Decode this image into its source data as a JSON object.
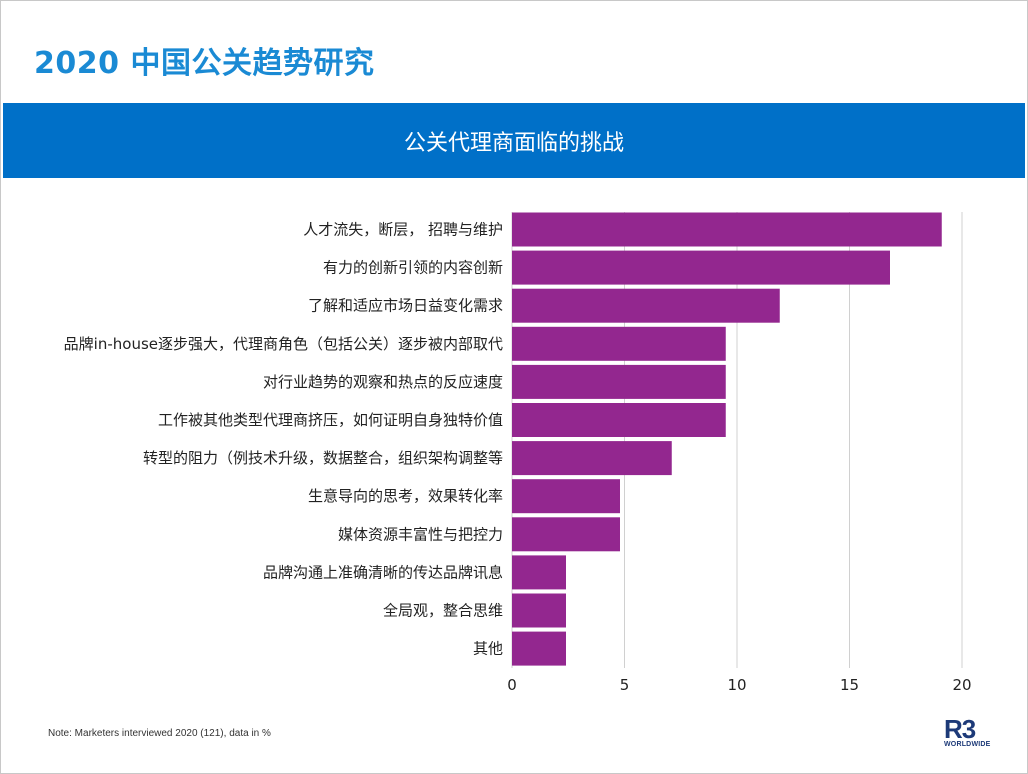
{
  "header": {
    "title": "2020 中国公关趋势研究",
    "banner_title": "公关代理商面临的挑战"
  },
  "chart_data": {
    "type": "bar",
    "orientation": "horizontal",
    "title": "公关代理商面临的挑战",
    "categories": [
      "人才流失，断层， 招聘与维护",
      "有力的创新引领的内容创新",
      "了解和适应市场日益变化需求",
      "品牌in-house逐步强大，代理商角色（包括公关）逐步被内部取代",
      "对行业趋势的观察和热点的反应速度",
      "工作被其他类型代理商挤压，如何证明自身独特价值",
      "转型的阻力（例技术升级，数据整合，组织架构调整等",
      "生意导向的思考，效果转化率",
      "媒体资源丰富性与把控力",
      "品牌沟通上准确清晰的传达品牌讯息",
      "全局观，整合思维",
      "其他"
    ],
    "values": [
      19.1,
      16.8,
      11.9,
      9.5,
      9.5,
      9.5,
      7.1,
      4.8,
      4.8,
      2.4,
      2.4,
      2.4
    ],
    "xlim": [
      0,
      20
    ],
    "xticks": [
      0,
      5,
      10,
      15,
      20
    ],
    "grid": true,
    "bar_color": "#93278f",
    "grid_color": "#d0d0d0"
  },
  "footer": {
    "note": "Note: Marketers interviewed 2020 (121), data in %",
    "logo_mark": "R3",
    "logo_sub": "WORLDWIDE"
  },
  "colors": {
    "title": "#1a8ad4",
    "banner": "#0070c8",
    "logo": "#1d3a78"
  }
}
